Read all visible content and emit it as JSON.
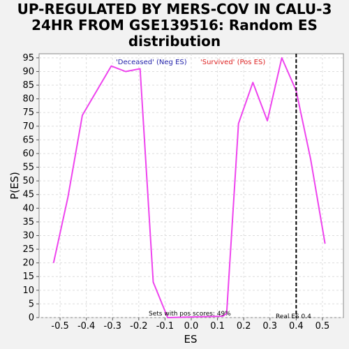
{
  "title_lines": [
    "UP-REGULATED BY MERS-COV IN CALU-3",
    "24HR FROM GSE139516: Random ES",
    "distribution"
  ],
  "chart_data": {
    "type": "line",
    "title": "UP-REGULATED BY MERS-COV IN CALU-3 24HR FROM GSE139516: Random ES distribution",
    "xlabel": "ES",
    "ylabel": "P(ES)",
    "xlim": [
      -0.58,
      0.58
    ],
    "ylim": [
      0,
      96.5
    ],
    "xticks": [
      -0.5,
      -0.4,
      -0.3,
      -0.2,
      -0.1,
      0.0,
      0.1,
      0.2,
      0.3,
      0.4,
      0.5
    ],
    "xtick_labels": [
      "-0.5",
      "-0.4",
      "-0.3",
      "-0.2",
      "-0.1",
      "0.0",
      "0.1",
      "0.2",
      "0.3",
      "0.4",
      "0.5"
    ],
    "yticks": [
      0,
      5,
      10,
      15,
      20,
      25,
      30,
      35,
      40,
      45,
      50,
      55,
      60,
      65,
      70,
      75,
      80,
      85,
      90,
      95
    ],
    "grid": true,
    "series": [
      {
        "color": "#ee44ee",
        "x": [
          -0.525,
          -0.47,
          -0.415,
          -0.305,
          -0.25,
          -0.195,
          -0.145,
          -0.09,
          0.12,
          0.135,
          0.18,
          0.235,
          0.29,
          0.345,
          0.4,
          0.455,
          0.51
        ],
        "y": [
          20,
          44,
          74,
          92,
          90,
          91,
          13,
          0,
          0.5,
          1.5,
          71,
          86,
          72,
          95,
          83,
          58,
          27
        ]
      }
    ],
    "legend": [
      {
        "label": "'Deceased' (Neg ES)",
        "color": "#2222aa"
      },
      {
        "label": "'Survived' (Pos ES)",
        "color": "#dd2222"
      }
    ],
    "reference_line": {
      "x": 0.4,
      "style": "dashed",
      "label": "Real ES 0.4"
    },
    "annotation": "Sets with pos scores: 49%"
  }
}
